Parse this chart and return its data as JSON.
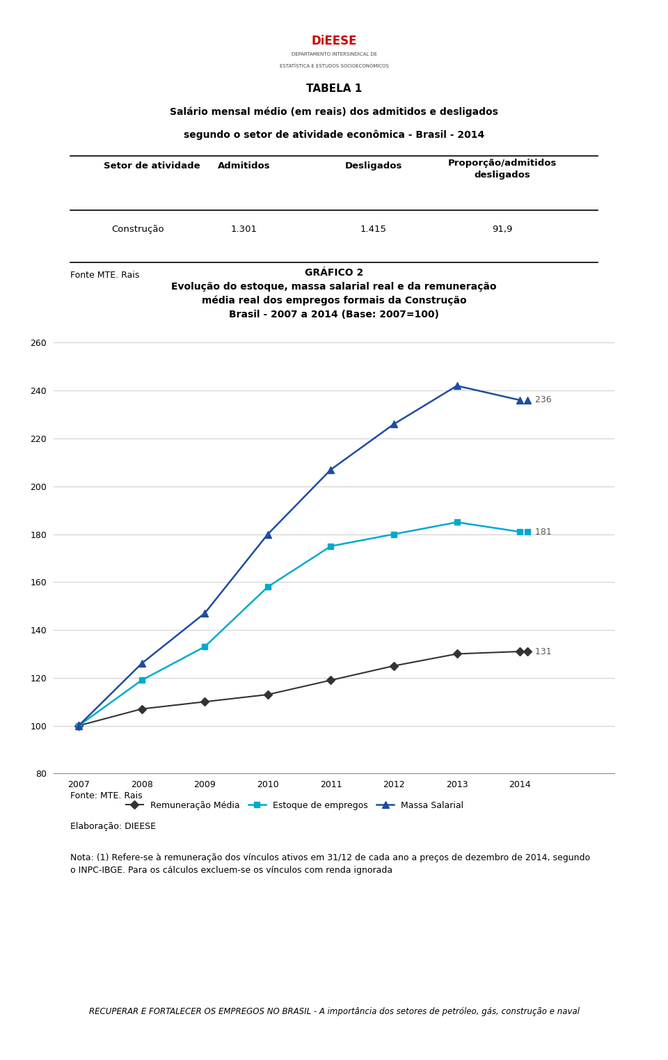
{
  "table_title1": "TABELA 1",
  "table_title2": "Salário mensal médio (em reais) dos admitidos e desligados",
  "table_title3": "segundo o setor de atividade econômica - Brasil - 2014",
  "table_headers": [
    "Setor de atividade",
    "Admitidos",
    "Desligados",
    "Proporção/admitidos\ndesligados"
  ],
  "table_row": [
    "Construção",
    "1.301",
    "1.415",
    "91,9"
  ],
  "table_source": "Fonte MTE. Rais",
  "chart_title1": "GRÁFICO 2",
  "chart_title2": "Evolução do estoque, massa salarial real e da remuneração",
  "chart_title3": "média real dos empregos formais da Construção",
  "chart_title4": "Brasil - 2007 a 2014 (Base: 2007=100)",
  "years": [
    2007,
    2008,
    2009,
    2010,
    2011,
    2012,
    2013,
    2014
  ],
  "remuneracao_media": [
    100,
    107,
    110,
    113,
    119,
    125,
    130,
    131
  ],
  "estoque_empregos": [
    100,
    119,
    133,
    158,
    175,
    180,
    185,
    181
  ],
  "massa_salarial": [
    100,
    126,
    147,
    180,
    207,
    226,
    242,
    236
  ],
  "remuneracao_color": "#333333",
  "estoque_color": "#00AACC",
  "massa_color": "#1E4DA1",
  "ylim": [
    80,
    265
  ],
  "yticks": [
    80,
    100,
    120,
    140,
    160,
    180,
    200,
    220,
    240,
    260
  ],
  "end_labels": {
    "remuneracao": "131",
    "estoque": "181",
    "massa": "236"
  },
  "legend_labels": [
    "Remuneração Média",
    "Estoque de empregos",
    "Massa Salarial"
  ],
  "footer_text1": "Fonte: MTE. Rais",
  "footer_text2": "Elaboração: DIEESE",
  "footer_text3": "Nota: (1) Refere-se à remuneração dos vínculos ativos em 31/12 de cada ano a preços de dezembro de 2014, segundo\no INPC-IBGE. Para os cálculos excluem-se os vínculos com renda ignorada",
  "bottom_text": "RECUPERAR E FORTALECER OS EMPREGOS NO BRASIL - A importância dos setores de petróleo, gás, construção e naval",
  "background_color": "#FFFFFF"
}
